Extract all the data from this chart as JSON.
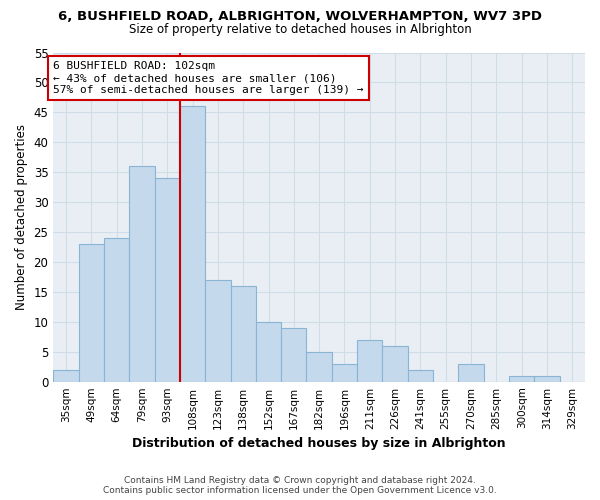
{
  "title": "6, BUSHFIELD ROAD, ALBRIGHTON, WOLVERHAMPTON, WV7 3PD",
  "subtitle": "Size of property relative to detached houses in Albrighton",
  "xlabel": "Distribution of detached houses by size in Albrighton",
  "ylabel": "Number of detached properties",
  "footer_lines": [
    "Contains HM Land Registry data © Crown copyright and database right 2024.",
    "Contains public sector information licensed under the Open Government Licence v3.0."
  ],
  "bin_labels": [
    "35sqm",
    "49sqm",
    "64sqm",
    "79sqm",
    "93sqm",
    "108sqm",
    "123sqm",
    "138sqm",
    "152sqm",
    "167sqm",
    "182sqm",
    "196sqm",
    "211sqm",
    "226sqm",
    "241sqm",
    "255sqm",
    "270sqm",
    "285sqm",
    "300sqm",
    "314sqm",
    "329sqm"
  ],
  "bar_heights": [
    2,
    23,
    24,
    36,
    34,
    46,
    17,
    16,
    10,
    9,
    5,
    3,
    7,
    6,
    2,
    0,
    3,
    0,
    1,
    1,
    0
  ],
  "bar_color": "#c5d9ed",
  "bar_edge_color": "#8ab4d4",
  "ylim": [
    0,
    55
  ],
  "yticks": [
    0,
    5,
    10,
    15,
    20,
    25,
    30,
    35,
    40,
    45,
    50,
    55
  ],
  "vline_position": 4.5,
  "vline_color": "#cc0000",
  "annotation_text": "6 BUSHFIELD ROAD: 102sqm\n← 43% of detached houses are smaller (106)\n57% of semi-detached houses are larger (139) →",
  "annotation_box_edge_color": "#cc0000",
  "background_color": "#ffffff",
  "grid_color": "#d0dce8",
  "plot_bg_color": "#e8eef4"
}
